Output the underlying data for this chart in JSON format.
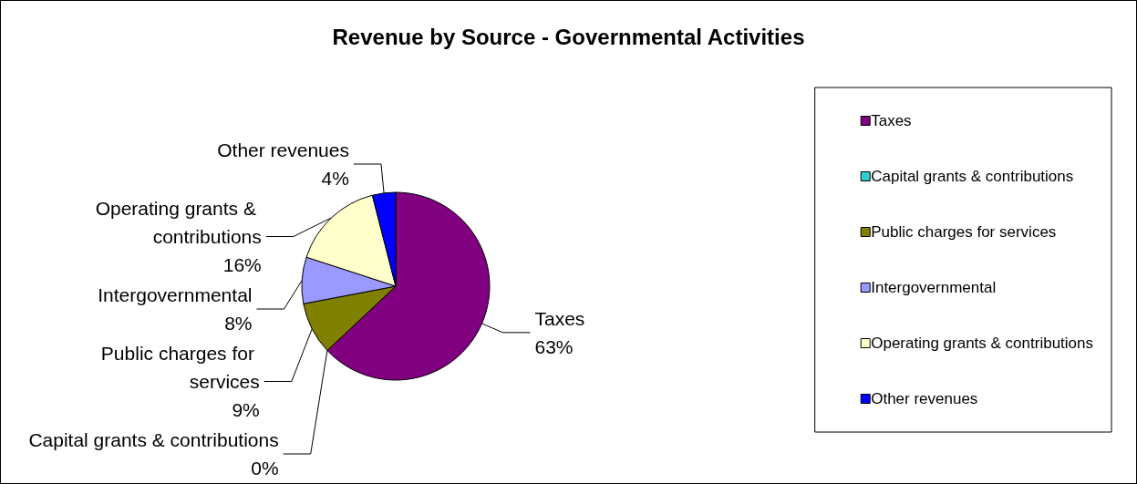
{
  "chart_data": {
    "type": "pie",
    "title": "Revenue by Source - Governmental Activities",
    "categories": [
      "Taxes",
      "Capital grants & contributions",
      "Public charges for services",
      "Intergovernmental",
      "Operating grants & contributions",
      "Other revenues"
    ],
    "values": [
      63,
      0,
      9,
      8,
      16,
      4
    ],
    "colors": [
      "#800080",
      "#33cccc",
      "#808000",
      "#9999ff",
      "#ffffcc",
      "#0000ff"
    ],
    "value_labels": [
      "63%",
      "0%",
      "9%",
      "8%",
      "16%",
      "4%"
    ],
    "legend": "right"
  }
}
